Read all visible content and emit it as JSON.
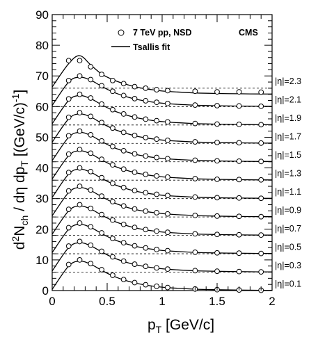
{
  "chart_data": {
    "type": "scatter",
    "title": "",
    "experiment_label": "CMS",
    "xlabel": {
      "main": "p",
      "sub": "T",
      "rest": " [GeV/c]"
    },
    "ylabel": {
      "p1": "d",
      "p1sup": "2",
      "p2": "N",
      "p2sub": "ch",
      "p3": " / dη dp",
      "p3sub": "T",
      "p4": " [(GeV/c)",
      "p4sup": "-1",
      "p5": "]"
    },
    "xlim": [
      0,
      2
    ],
    "ylim": [
      0,
      90
    ],
    "x_ticks": [
      "0",
      "0.5",
      "1",
      "1.5",
      "2"
    ],
    "y_ticks": [
      "0",
      "10",
      "20",
      "30",
      "40",
      "50",
      "60",
      "70",
      "80",
      "90"
    ],
    "legend": {
      "position": "top",
      "data_label": "7 TeV pp, NSD",
      "fit_label": "Tsallis fit"
    },
    "x": [
      0.15,
      0.25,
      0.35,
      0.45,
      0.55,
      0.65,
      0.75,
      0.85,
      0.95,
      1.05,
      1.3,
      1.5,
      1.7,
      1.9
    ],
    "bin_spacing": 6,
    "series": [
      {
        "name": "|η|=0.1",
        "baseline": 0,
        "values": [
          8.5,
          10,
          8.8,
          6.8,
          5.0,
          3.6,
          2.6,
          1.9,
          1.4,
          1.0,
          0.5,
          0.3,
          0.2,
          0.1
        ]
      },
      {
        "name": "|η|=0.3",
        "baseline": 6,
        "values": [
          14.5,
          16,
          14.8,
          12.8,
          11.0,
          9.6,
          8.6,
          7.9,
          7.4,
          7.0,
          6.5,
          6.3,
          6.2,
          6.1
        ]
      },
      {
        "name": "|η|=0.5",
        "baseline": 12,
        "values": [
          20.5,
          22,
          20.8,
          18.8,
          17.0,
          15.6,
          14.6,
          13.9,
          13.4,
          13.0,
          12.5,
          12.3,
          12.2,
          12.1
        ]
      },
      {
        "name": "|η|=0.7",
        "baseline": 18,
        "values": [
          26.5,
          28,
          26.8,
          24.8,
          23.0,
          21.6,
          20.6,
          19.9,
          19.4,
          19.0,
          18.5,
          18.3,
          18.2,
          18.1
        ]
      },
      {
        "name": "|η|=0.9",
        "baseline": 24,
        "values": [
          32.5,
          34,
          32.8,
          30.8,
          29.0,
          27.6,
          26.6,
          25.9,
          25.4,
          25.0,
          24.5,
          24.3,
          24.2,
          24.1
        ]
      },
      {
        "name": "|η|=1.1",
        "baseline": 30,
        "values": [
          38.5,
          40,
          38.8,
          36.8,
          35.0,
          33.6,
          32.6,
          31.9,
          31.4,
          31.0,
          30.5,
          30.3,
          30.2,
          30.1
        ]
      },
      {
        "name": "|η|=1.3",
        "baseline": 36,
        "values": [
          44.5,
          46,
          44.8,
          42.8,
          41.0,
          39.6,
          38.6,
          37.9,
          37.4,
          37.0,
          36.5,
          36.3,
          36.2,
          36.1
        ]
      },
      {
        "name": "|η|=1.5",
        "baseline": 42,
        "values": [
          50.5,
          52,
          50.8,
          48.8,
          47.0,
          45.6,
          44.6,
          43.9,
          43.4,
          43.0,
          42.5,
          42.3,
          42.2,
          42.1
        ]
      },
      {
        "name": "|η|=1.7",
        "baseline": 48,
        "values": [
          56.5,
          58,
          56.8,
          54.8,
          53.0,
          51.6,
          50.6,
          49.9,
          49.4,
          49.0,
          48.5,
          48.3,
          48.2,
          48.1
        ]
      },
      {
        "name": "|η|=1.9",
        "baseline": 54,
        "values": [
          62.5,
          64,
          62.8,
          60.8,
          59.0,
          57.6,
          56.6,
          55.9,
          55.4,
          55.0,
          54.5,
          54.3,
          54.2,
          54.1
        ]
      },
      {
        "name": "|η|=2.1",
        "baseline": 60,
        "values": [
          68.5,
          70,
          68.8,
          66.8,
          65.0,
          63.6,
          62.6,
          61.9,
          61.4,
          61.0,
          60.5,
          60.3,
          60.2,
          60.1
        ]
      },
      {
        "name": "|η|=2.3",
        "baseline": 66,
        "values": [
          75.0,
          75.0,
          73.0,
          70.5,
          68.5,
          67.5,
          66.5,
          66.0,
          65.5,
          65.2,
          65.0,
          64.8,
          64.8,
          64.7
        ]
      }
    ],
    "fit_curves": [
      {
        "baseline": 0,
        "values": [
          8.0,
          9.6,
          8.6,
          6.6,
          4.8,
          3.5,
          2.5,
          1.8,
          1.3,
          0.95,
          0.45,
          0.27,
          0.17,
          0.1
        ]
      },
      {
        "baseline": 6,
        "values": [
          14.0,
          15.6,
          14.6,
          12.6,
          10.8,
          9.5,
          8.5,
          7.8,
          7.3,
          6.95,
          6.45,
          6.27,
          6.17,
          6.1
        ]
      },
      {
        "baseline": 12,
        "values": [
          20.0,
          21.6,
          20.6,
          18.6,
          16.8,
          15.5,
          14.5,
          13.8,
          13.3,
          12.95,
          12.45,
          12.27,
          12.17,
          12.1
        ]
      },
      {
        "baseline": 18,
        "values": [
          26.0,
          27.6,
          26.6,
          24.6,
          22.8,
          21.5,
          20.5,
          19.8,
          19.3,
          18.95,
          18.45,
          18.27,
          18.17,
          18.1
        ]
      },
      {
        "baseline": 24,
        "values": [
          32.0,
          33.6,
          32.6,
          30.6,
          28.8,
          27.5,
          26.5,
          25.8,
          25.3,
          24.95,
          24.45,
          24.27,
          24.17,
          24.1
        ]
      },
      {
        "baseline": 30,
        "values": [
          38.0,
          39.6,
          38.6,
          36.6,
          34.8,
          33.5,
          32.5,
          31.8,
          31.3,
          30.95,
          30.45,
          30.27,
          30.17,
          30.1
        ]
      },
      {
        "baseline": 36,
        "values": [
          44.0,
          45.6,
          44.6,
          42.6,
          40.8,
          39.5,
          38.5,
          37.8,
          37.3,
          36.95,
          36.45,
          36.27,
          36.17,
          36.1
        ]
      },
      {
        "baseline": 42,
        "values": [
          50.0,
          51.6,
          50.6,
          48.6,
          46.8,
          45.5,
          44.5,
          43.8,
          43.3,
          42.95,
          42.45,
          42.27,
          42.17,
          42.1
        ]
      },
      {
        "baseline": 48,
        "values": [
          56.0,
          57.6,
          56.6,
          54.6,
          52.8,
          51.5,
          50.5,
          49.8,
          49.3,
          48.95,
          48.45,
          48.27,
          48.17,
          48.1
        ]
      },
      {
        "baseline": 54,
        "values": [
          62.0,
          63.6,
          62.6,
          60.6,
          58.8,
          57.5,
          56.5,
          55.8,
          55.3,
          54.95,
          54.45,
          54.27,
          54.17,
          54.1
        ]
      },
      {
        "baseline": 60,
        "values": [
          68.0,
          69.6,
          68.6,
          66.6,
          64.8,
          63.5,
          62.5,
          61.8,
          61.3,
          60.95,
          60.45,
          60.27,
          60.17,
          60.1
        ]
      },
      {
        "baseline": 66,
        "values": [
          74.0,
          76.6,
          73.6,
          70.6,
          68.8,
          67.5,
          66.5,
          65.8,
          65.3,
          64.95,
          64.45,
          64.27,
          64.17,
          64.1
        ]
      }
    ],
    "grid": false
  }
}
